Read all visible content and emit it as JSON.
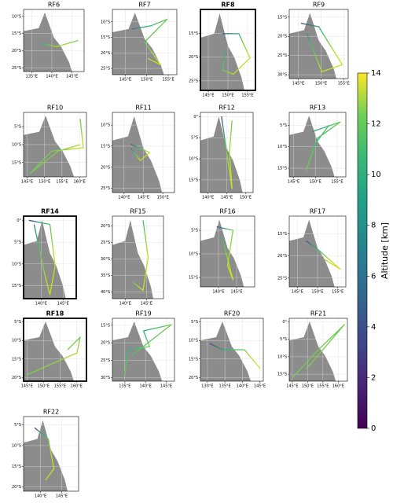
{
  "chart_data": [
    {
      "type": "map",
      "title": "RF6",
      "bold": false,
      "xlim": [
        133,
        148
      ],
      "ylim": [
        -26,
        -8
      ],
      "xticks": [
        {
          "value": 135,
          "label": "135°E"
        },
        {
          "value": 140,
          "label": "140°E"
        },
        {
          "value": 145,
          "label": "145°E"
        }
      ],
      "yticks": [
        {
          "value": -10,
          "label": "10°S"
        },
        {
          "value": -15,
          "label": "15°S"
        },
        {
          "value": -20,
          "label": "20°S"
        },
        {
          "value": -25,
          "label": "25°S"
        }
      ]
    },
    {
      "type": "map",
      "title": "RF7",
      "bold": false,
      "xlim": [
        142,
        157
      ],
      "ylim": [
        -27,
        -6
      ],
      "xticks": [
        {
          "value": 145,
          "label": "145°E"
        },
        {
          "value": 150,
          "label": "150°E"
        },
        {
          "value": 155,
          "label": "155°E"
        }
      ],
      "yticks": [
        {
          "value": -10,
          "label": "10°S"
        },
        {
          "value": -15,
          "label": "15°S"
        },
        {
          "value": -20,
          "label": "20°S"
        },
        {
          "value": -25,
          "label": "25°S"
        }
      ]
    },
    {
      "type": "map",
      "title": "RF8",
      "bold": true,
      "xlim": [
        143,
        157
      ],
      "ylim": [
        -27,
        -10
      ],
      "xticks": [
        {
          "value": 145,
          "label": "145°E"
        },
        {
          "value": 150,
          "label": "150°E"
        },
        {
          "value": 155,
          "label": "155°E"
        }
      ],
      "yticks": [
        {
          "value": -15,
          "label": "15°S"
        },
        {
          "value": -20,
          "label": "20°S"
        },
        {
          "value": -25,
          "label": "25°S"
        }
      ]
    },
    {
      "type": "map",
      "title": "RF9",
      "bold": false,
      "xlim": [
        143,
        156
      ],
      "ylim": [
        -31,
        -13
      ],
      "xticks": [
        {
          "value": 145,
          "label": "145°E"
        },
        {
          "value": 150,
          "label": "150°E"
        },
        {
          "value": 155,
          "label": "155°E"
        }
      ],
      "yticks": [
        {
          "value": -15,
          "label": "15°S"
        },
        {
          "value": -20,
          "label": "20°S"
        },
        {
          "value": -25,
          "label": "25°S"
        },
        {
          "value": -30,
          "label": "30°S"
        }
      ]
    },
    {
      "type": "map",
      "title": "RF10",
      "bold": false,
      "xlim": [
        144,
        162
      ],
      "ylim": [
        -19,
        -1
      ],
      "xticks": [
        {
          "value": 145,
          "label": "145°E"
        },
        {
          "value": 150,
          "label": "150°E"
        },
        {
          "value": 155,
          "label": "155°E"
        },
        {
          "value": 160,
          "label": "160°E"
        }
      ],
      "yticks": [
        {
          "value": -5,
          "label": "5°S"
        },
        {
          "value": -10,
          "label": "10°S"
        },
        {
          "value": -15,
          "label": "15°S"
        }
      ]
    },
    {
      "type": "map",
      "title": "RF11",
      "bold": false,
      "xlim": [
        137,
        153
      ],
      "ylim": [
        -26,
        -7
      ],
      "xticks": [
        {
          "value": 140,
          "label": "140°E"
        },
        {
          "value": 145,
          "label": "145°E"
        },
        {
          "value": 150,
          "label": "150°E"
        }
      ],
      "yticks": [
        {
          "value": -10,
          "label": "10°S"
        },
        {
          "value": -15,
          "label": "15°S"
        },
        {
          "value": -20,
          "label": "20°S"
        },
        {
          "value": -25,
          "label": "25°S"
        }
      ]
    },
    {
      "type": "map",
      "title": "RF12",
      "bold": false,
      "xlim": [
        138,
        152
      ],
      "ylim": [
        -18,
        1
      ],
      "xticks": [
        {
          "value": 140,
          "label": "140°E"
        },
        {
          "value": 145,
          "label": "145°E"
        },
        {
          "value": 150,
          "label": "150°E"
        }
      ],
      "yticks": [
        {
          "value": 0,
          "label": "0°"
        },
        {
          "value": -5,
          "label": "5°S"
        },
        {
          "value": -10,
          "label": "10°S"
        },
        {
          "value": -15,
          "label": "15°S"
        }
      ]
    },
    {
      "type": "map",
      "title": "RF13",
      "bold": false,
      "xlim": [
        144,
        157
      ],
      "ylim": [
        -17,
        -2
      ],
      "xticks": [
        {
          "value": 145,
          "label": "145°E"
        },
        {
          "value": 150,
          "label": "150°E"
        },
        {
          "value": 155,
          "label": "155°E"
        }
      ],
      "yticks": [
        {
          "value": -5,
          "label": "5°S"
        },
        {
          "value": -10,
          "label": "10°S"
        },
        {
          "value": -15,
          "label": "15°S"
        }
      ]
    },
    {
      "type": "map",
      "title": "RF14",
      "bold": true,
      "xlim": [
        136,
        148
      ],
      "ylim": [
        -18,
        1
      ],
      "xticks": [
        {
          "value": 140,
          "label": "140°E"
        },
        {
          "value": 145,
          "label": "145°E"
        }
      ],
      "yticks": [
        {
          "value": 0,
          "label": "0°"
        },
        {
          "value": -5,
          "label": "5°S"
        },
        {
          "value": -10,
          "label": "10°S"
        },
        {
          "value": -15,
          "label": "15°S"
        }
      ]
    },
    {
      "type": "map",
      "title": "RF15",
      "bold": false,
      "xlim": [
        137,
        149
      ],
      "ylim": [
        -42,
        -17
      ],
      "xticks": [
        {
          "value": 140,
          "label": "140°E"
        },
        {
          "value": 145,
          "label": "145°E"
        }
      ],
      "yticks": [
        {
          "value": -20,
          "label": "20°S"
        },
        {
          "value": -25,
          "label": "25°S"
        },
        {
          "value": -30,
          "label": "30°S"
        },
        {
          "value": -35,
          "label": "35°S"
        },
        {
          "value": -40,
          "label": "40°S"
        }
      ]
    },
    {
      "type": "map",
      "title": "RF16",
      "bold": false,
      "xlim": [
        135,
        150
      ],
      "ylim": [
        -17,
        -2
      ],
      "xticks": [
        {
          "value": 140,
          "label": "140°E"
        },
        {
          "value": 145,
          "label": "145°E"
        }
      ],
      "yticks": [
        {
          "value": -5,
          "label": "5°S"
        },
        {
          "value": -10,
          "label": "10°S"
        },
        {
          "value": -15,
          "label": "15°S"
        }
      ]
    },
    {
      "type": "map",
      "title": "RF17",
      "bold": false,
      "xlim": [
        143,
        157
      ],
      "ylim": [
        -27,
        -11
      ],
      "xticks": [
        {
          "value": 145,
          "label": "145°E"
        },
        {
          "value": 150,
          "label": "150°E"
        },
        {
          "value": 155,
          "label": "155°E"
        }
      ],
      "yticks": [
        {
          "value": -15,
          "label": "15°S"
        },
        {
          "value": -20,
          "label": "20°S"
        },
        {
          "value": -25,
          "label": "25°S"
        }
      ]
    },
    {
      "type": "map",
      "title": "RF18",
      "bold": true,
      "xlim": [
        144,
        163
      ],
      "ylim": [
        -21,
        -4
      ],
      "xticks": [
        {
          "value": 145,
          "label": "145°E"
        },
        {
          "value": 150,
          "label": "150°E"
        },
        {
          "value": 155,
          "label": "155°E"
        },
        {
          "value": 160,
          "label": "160°E"
        }
      ],
      "yticks": [
        {
          "value": -5,
          "label": "5°S"
        },
        {
          "value": -10,
          "label": "10°S"
        },
        {
          "value": -15,
          "label": "15°S"
        },
        {
          "value": -20,
          "label": "20°S"
        }
      ]
    },
    {
      "type": "map",
      "title": "RF19",
      "bold": false,
      "xlim": [
        132,
        147
      ],
      "ylim": [
        -31,
        -13
      ],
      "xticks": [
        {
          "value": 135,
          "label": "135°E"
        },
        {
          "value": 140,
          "label": "140°E"
        },
        {
          "value": 145,
          "label": "145°E"
        }
      ],
      "yticks": [
        {
          "value": -15,
          "label": "15°S"
        },
        {
          "value": -20,
          "label": "20°S"
        },
        {
          "value": -25,
          "label": "25°S"
        },
        {
          "value": -30,
          "label": "30°S"
        }
      ]
    },
    {
      "type": "map",
      "title": "RF20",
      "bold": false,
      "xlim": [
        128,
        146
      ],
      "ylim": [
        -21,
        -4
      ],
      "xticks": [
        {
          "value": 130,
          "label": "130°E"
        },
        {
          "value": 135,
          "label": "135°E"
        },
        {
          "value": 140,
          "label": "140°E"
        },
        {
          "value": 145,
          "label": "145°E"
        }
      ],
      "yticks": [
        {
          "value": -5,
          "label": "5°S"
        },
        {
          "value": -10,
          "label": "10°S"
        },
        {
          "value": -15,
          "label": "15°S"
        },
        {
          "value": -20,
          "label": "20°S"
        }
      ]
    },
    {
      "type": "map",
      "title": "RF21",
      "bold": false,
      "xlim": [
        144,
        163
      ],
      "ylim": [
        -17,
        1
      ],
      "xticks": [
        {
          "value": 145,
          "label": "145°E"
        },
        {
          "value": 150,
          "label": "150°E"
        },
        {
          "value": 155,
          "label": "155°E"
        },
        {
          "value": 160,
          "label": "160°E"
        }
      ],
      "yticks": [
        {
          "value": 0,
          "label": "0°"
        },
        {
          "value": -5,
          "label": "5°S"
        },
        {
          "value": -10,
          "label": "10°S"
        },
        {
          "value": -15,
          "label": "15°S"
        }
      ]
    },
    {
      "type": "map",
      "title": "RF22",
      "bold": false,
      "xlim": [
        136,
        149
      ],
      "ylim": [
        -21,
        -3
      ],
      "xticks": [
        {
          "value": 140,
          "label": "140°E"
        },
        {
          "value": 145,
          "label": "145°E"
        }
      ],
      "yticks": [
        {
          "value": -5,
          "label": "5°S"
        },
        {
          "value": -10,
          "label": "10°S"
        },
        {
          "value": -15,
          "label": "15°S"
        },
        {
          "value": -20,
          "label": "20°S"
        }
      ]
    },
    {
      "type": "colorbar",
      "label": "Altitude [km]",
      "ylim": [
        0,
        14
      ],
      "yticks": [
        0,
        2,
        4,
        6,
        8,
        10,
        12,
        14
      ]
    }
  ]
}
